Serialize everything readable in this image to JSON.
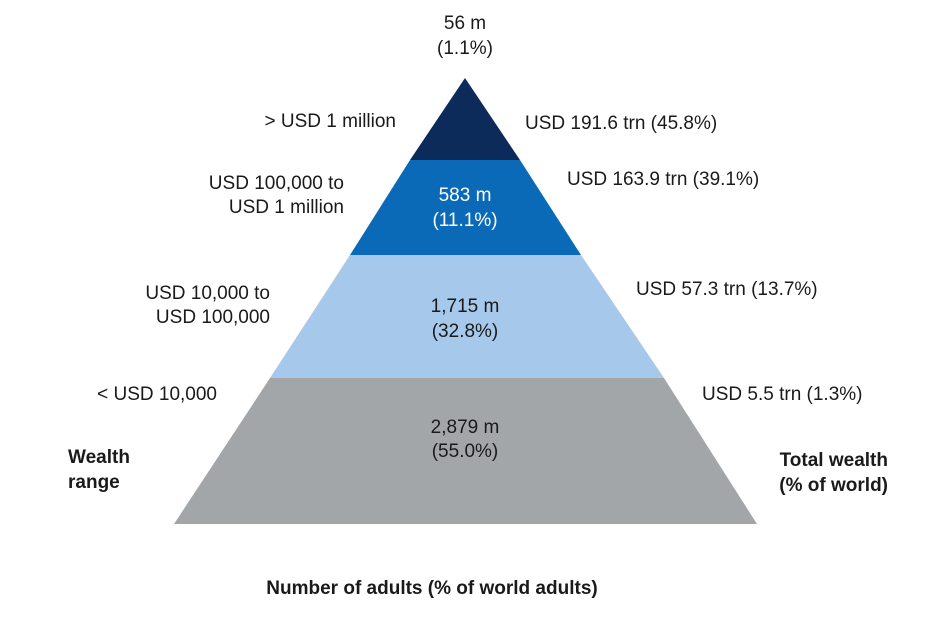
{
  "top_count": {
    "line1": "56 m",
    "line2": "(1.1%)"
  },
  "tiers": [
    {
      "range": [
        "> USD 1 million"
      ],
      "adults": [
        "",
        ""
      ],
      "wealth": "USD 191.6 trn (45.8%)",
      "color": "#0d2b5a"
    },
    {
      "range": [
        "USD 100,000 to",
        "USD 1 million"
      ],
      "adults": [
        "583 m",
        "(11.1%)"
      ],
      "wealth": "USD 163.9 trn (39.1%)",
      "color": "#0a6ab8"
    },
    {
      "range": [
        "USD 10,000 to",
        "USD 100,000"
      ],
      "adults": [
        "1,715 m",
        "(32.8%)"
      ],
      "wealth": "USD 57.3 trn (13.7%)",
      "color": "#a6c8ea"
    },
    {
      "range": [
        "< USD 10,000"
      ],
      "adults": [
        "2,879 m",
        "(55.0%)"
      ],
      "wealth": "USD 5.5 trn (1.3%)",
      "color": "#a3a6a9"
    }
  ],
  "left_axis_title": [
    "Wealth",
    "range"
  ],
  "right_axis_title": [
    "Total wealth",
    "(% of world)"
  ],
  "bottom_title": "Number of adults (% of world adults)"
}
